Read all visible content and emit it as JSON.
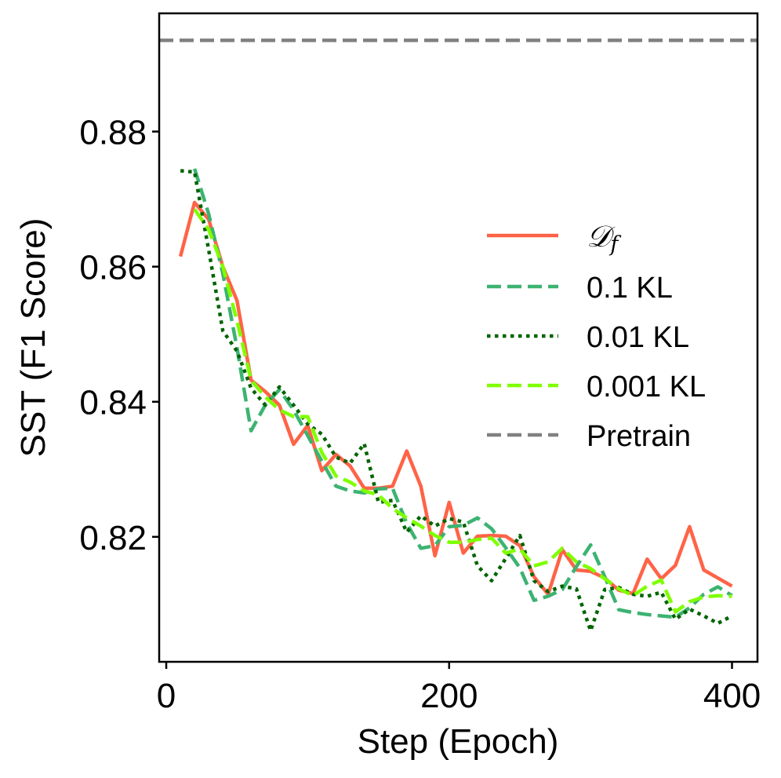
{
  "chart_data": {
    "type": "line",
    "title": "",
    "xlabel": "Step (Epoch)",
    "ylabel": "SST (F1 Score)",
    "xlim": [
      -5,
      418
    ],
    "ylim": [
      0.8015,
      0.8975
    ],
    "xticks": [
      0,
      200,
      400
    ],
    "xtick_labels": [
      "0",
      "200",
      "400"
    ],
    "yticks": [
      0.82,
      0.84,
      0.86,
      0.88
    ],
    "ytick_labels": [
      "0.82",
      "0.84",
      "0.86",
      "0.88"
    ],
    "grid": false,
    "legend_position": "center-right",
    "reference_lines": [
      {
        "name": "Pretrain",
        "y": 0.8935,
        "color": "#808080",
        "style": "dashed"
      }
    ],
    "series": [
      {
        "name": "D_f",
        "legend_label": "𝒟",
        "legend_subscript": "f",
        "color": "#FF6347",
        "style": "solid",
        "x": [
          10,
          20,
          30,
          40,
          50,
          60,
          70,
          80,
          90,
          100,
          110,
          120,
          130,
          140,
          150,
          160,
          170,
          180,
          190,
          200,
          210,
          220,
          230,
          240,
          250,
          260,
          270,
          280,
          290,
          300,
          310,
          320,
          330,
          340,
          350,
          360,
          370,
          380,
          390,
          400
        ],
        "y": [
          0.8615,
          0.8695,
          0.867,
          0.86,
          0.855,
          0.8432,
          0.8415,
          0.8395,
          0.8337,
          0.8365,
          0.8298,
          0.8322,
          0.8305,
          0.8272,
          0.8272,
          0.8275,
          0.8327,
          0.8275,
          0.8172,
          0.8251,
          0.8176,
          0.8201,
          0.8202,
          0.8201,
          0.8187,
          0.8141,
          0.8115,
          0.8181,
          0.8151,
          0.8149,
          0.8139,
          0.8121,
          0.8116,
          0.8167,
          0.8138,
          0.8158,
          0.8215,
          0.8151,
          0.8139,
          0.8127
        ]
      },
      {
        "name": "0.1 KL",
        "legend_label": "0.1 KL",
        "color": "#3CB371",
        "style": "dashed",
        "x": [
          20,
          30,
          40,
          50,
          60,
          70,
          80,
          90,
          100,
          110,
          120,
          130,
          140,
          150,
          160,
          170,
          180,
          190,
          200,
          210,
          220,
          230,
          240,
          250,
          260,
          270,
          280,
          290,
          300,
          310,
          320,
          330,
          340,
          350,
          360,
          370,
          380,
          390,
          400
        ],
        "y": [
          0.8745,
          0.8678,
          0.859,
          0.848,
          0.8357,
          0.8395,
          0.8418,
          0.8388,
          0.835,
          0.8312,
          0.8275,
          0.8268,
          0.8265,
          0.8271,
          0.8272,
          0.822,
          0.8183,
          0.8187,
          0.8215,
          0.8217,
          0.8228,
          0.8212,
          0.8184,
          0.8154,
          0.8106,
          0.8112,
          0.8122,
          0.8156,
          0.8188,
          0.8141,
          0.8092,
          0.8088,
          0.8085,
          0.8083,
          0.8081,
          0.8095,
          0.8115,
          0.8126,
          0.8113
        ]
      },
      {
        "name": "0.01 KL",
        "legend_label": "0.01 KL",
        "color": "#006400",
        "style": "dotted",
        "x": [
          10,
          20,
          30,
          40,
          50,
          60,
          70,
          80,
          90,
          100,
          110,
          120,
          130,
          140,
          150,
          160,
          170,
          180,
          190,
          200,
          210,
          220,
          230,
          240,
          250,
          260,
          270,
          280,
          290,
          300,
          310,
          320,
          330,
          340,
          350,
          360,
          370,
          380,
          390,
          400
        ],
        "y": [
          0.8742,
          0.874,
          0.8625,
          0.8505,
          0.8475,
          0.842,
          0.8395,
          0.8422,
          0.8395,
          0.8367,
          0.8352,
          0.8318,
          0.8309,
          0.8338,
          0.8251,
          0.8254,
          0.8207,
          0.8231,
          0.8216,
          0.8227,
          0.8222,
          0.8157,
          0.8135,
          0.8168,
          0.8202,
          0.8135,
          0.8119,
          0.8127,
          0.8123,
          0.8061,
          0.8122,
          0.8125,
          0.8115,
          0.8112,
          0.8118,
          0.8078,
          0.8093,
          0.8083,
          0.8072,
          0.8083
        ]
      },
      {
        "name": "0.001 KL",
        "legend_label": "0.001 KL",
        "color": "#7FFF00",
        "style": "dashed",
        "x": [
          20,
          30,
          40,
          50,
          60,
          70,
          80,
          90,
          100,
          110,
          120,
          130,
          140,
          150,
          160,
          170,
          180,
          190,
          200,
          210,
          220,
          230,
          240,
          250,
          260,
          270,
          280,
          290,
          300,
          310,
          320,
          330,
          340,
          350,
          360,
          370,
          380,
          390,
          400
        ],
        "y": [
          0.8685,
          0.8655,
          0.86,
          0.852,
          0.8432,
          0.8407,
          0.8388,
          0.8378,
          0.8378,
          0.8325,
          0.829,
          0.8281,
          0.8268,
          0.8262,
          0.8242,
          0.8228,
          0.8216,
          0.8202,
          0.8192,
          0.8192,
          0.8196,
          0.8198,
          0.8176,
          0.8182,
          0.8157,
          0.8163,
          0.8183,
          0.8163,
          0.8153,
          0.8138,
          0.8123,
          0.8113,
          0.8127,
          0.8136,
          0.8089,
          0.8104,
          0.8111,
          0.8113,
          0.8112
        ]
      }
    ]
  }
}
